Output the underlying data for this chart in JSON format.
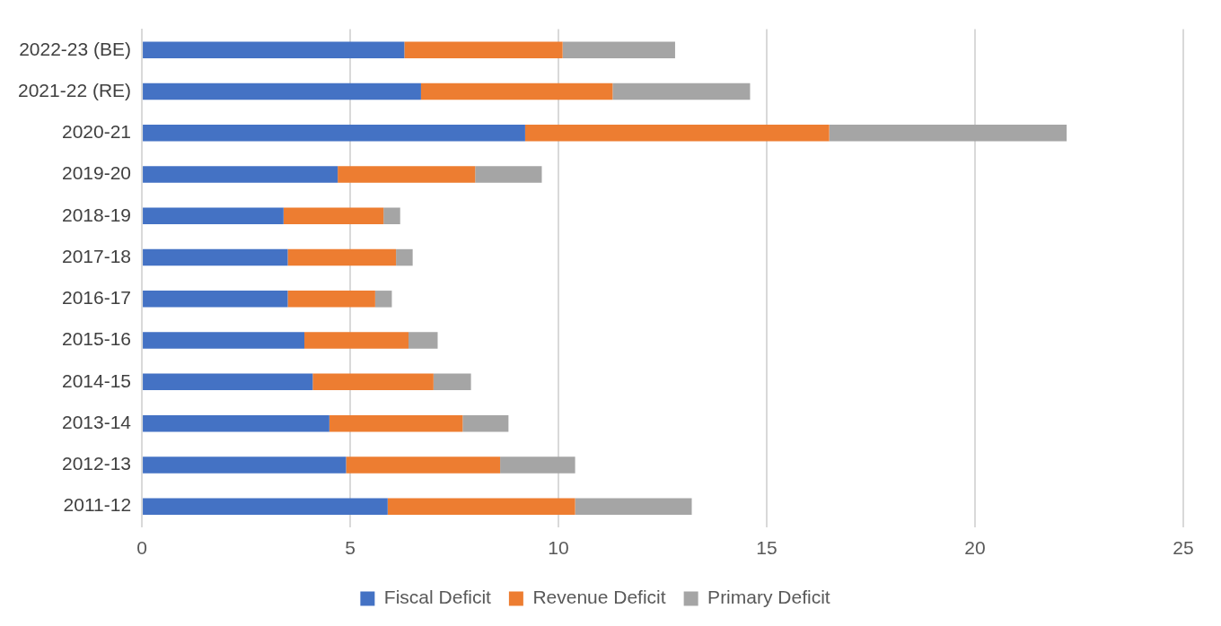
{
  "chart_data": {
    "type": "bar",
    "orientation": "horizontal",
    "stacked": true,
    "categories": [
      "2022-23 (BE)",
      "2021-22 (RE)",
      "2020-21",
      "2019-20",
      "2018-19",
      "2017-18",
      "2016-17",
      "2015-16",
      "2014-15",
      "2013-14",
      "2012-13",
      "2011-12"
    ],
    "series": [
      {
        "name": "Fiscal Deficit",
        "color": "#4472c4",
        "values": [
          6.3,
          6.7,
          9.2,
          4.7,
          3.4,
          3.5,
          3.5,
          3.9,
          4.1,
          4.5,
          4.9,
          5.9
        ]
      },
      {
        "name": "Revenue Deficit",
        "color": "#ed7d31",
        "values": [
          3.8,
          4.6,
          7.3,
          3.3,
          2.4,
          2.6,
          2.1,
          2.5,
          2.9,
          3.2,
          3.7,
          4.5
        ]
      },
      {
        "name": "Primary Deficit",
        "color": "#a5a5a5",
        "values": [
          2.7,
          3.3,
          5.7,
          1.6,
          0.4,
          0.4,
          0.4,
          0.7,
          0.9,
          1.1,
          1.8,
          2.8
        ]
      }
    ],
    "xlim": [
      0,
      25
    ],
    "xticks": [
      0,
      5,
      10,
      15,
      20,
      25
    ],
    "grid": "x",
    "legend": "bottom"
  }
}
